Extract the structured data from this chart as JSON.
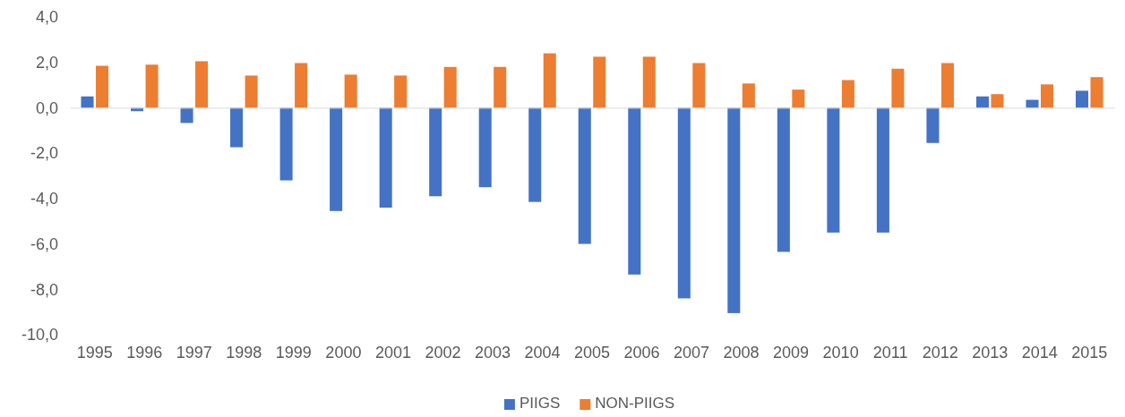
{
  "chart_data": {
    "type": "bar",
    "categories": [
      "1995",
      "1996",
      "1997",
      "1998",
      "1999",
      "2000",
      "2001",
      "2002",
      "2003",
      "2004",
      "2005",
      "2006",
      "2007",
      "2008",
      "2009",
      "2010",
      "2011",
      "2012",
      "2013",
      "2014",
      "2015"
    ],
    "series": [
      {
        "name": "PIIGS",
        "color": "#4472c4",
        "values": [
          0.5,
          -0.15,
          -0.67,
          -1.74,
          -3.2,
          -4.55,
          -4.4,
          -3.9,
          -3.5,
          -4.15,
          -6.0,
          -7.35,
          -8.4,
          -9.05,
          -6.35,
          -5.5,
          -5.5,
          -1.55,
          0.5,
          0.35,
          0.75
        ]
      },
      {
        "name": "NON-PIIGS",
        "color": "#ed7d31",
        "values": [
          1.85,
          1.9,
          2.05,
          1.42,
          1.97,
          1.46,
          1.42,
          1.8,
          1.8,
          2.4,
          2.25,
          2.25,
          1.97,
          1.07,
          0.8,
          1.22,
          1.72,
          1.97,
          0.6,
          1.03,
          1.35
        ]
      }
    ],
    "ylim": [
      -10,
      4
    ],
    "yticks": [
      {
        "value": -10,
        "label": "-10,0"
      },
      {
        "value": -8,
        "label": "-8,0"
      },
      {
        "value": -6,
        "label": "-6,0"
      },
      {
        "value": -4,
        "label": "-4,0"
      },
      {
        "value": -2,
        "label": "-2,0"
      },
      {
        "value": 0,
        "label": "0,0"
      },
      {
        "value": 2,
        "label": "2,0"
      },
      {
        "value": 4,
        "label": "4,0"
      }
    ],
    "legend": "bottom"
  }
}
